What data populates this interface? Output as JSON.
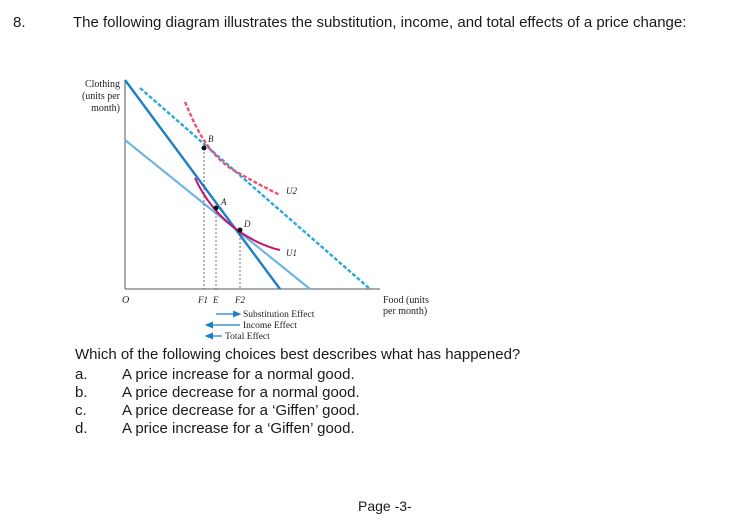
{
  "question": {
    "number": "8.",
    "text": "The following diagram illustrates the substitution, income, and total effects of a price change:",
    "prompt": "Which of the following choices best describes what has happened?",
    "choices": [
      {
        "letter": "a.",
        "text": "A price increase for a normal good."
      },
      {
        "letter": "b.",
        "text": "A price decrease for a normal good."
      },
      {
        "letter": "c.",
        "text": "A price decrease for a ‘Giffen’ good."
      },
      {
        "letter": "d.",
        "text": "A price increase for a ‘Giffen’ good."
      }
    ]
  },
  "diagram": {
    "y_axis_label": [
      "Clothing",
      "(units per",
      "month)"
    ],
    "x_axis_label": [
      "Food (units",
      "per month)"
    ],
    "origin_label": "O",
    "points": {
      "b": "B",
      "a": "A",
      "d": "D"
    },
    "curves": {
      "u1": "U1",
      "u2": "U2"
    },
    "tick_labels": {
      "f1": "F1",
      "e": "E",
      "f2": "F2"
    },
    "effects": {
      "substitution": "Substitution Effect",
      "income": "Income Effect",
      "total": "Total Effect"
    },
    "colors": {
      "budget_dark": "#1a7fc8",
      "budget_light": "#6cb6e4",
      "budget_dashed": "#29a8e0",
      "indifference_u1": "#c8106a",
      "indifference_u2": "#f0506e"
    }
  },
  "footer": {
    "page": "Page -3-"
  }
}
